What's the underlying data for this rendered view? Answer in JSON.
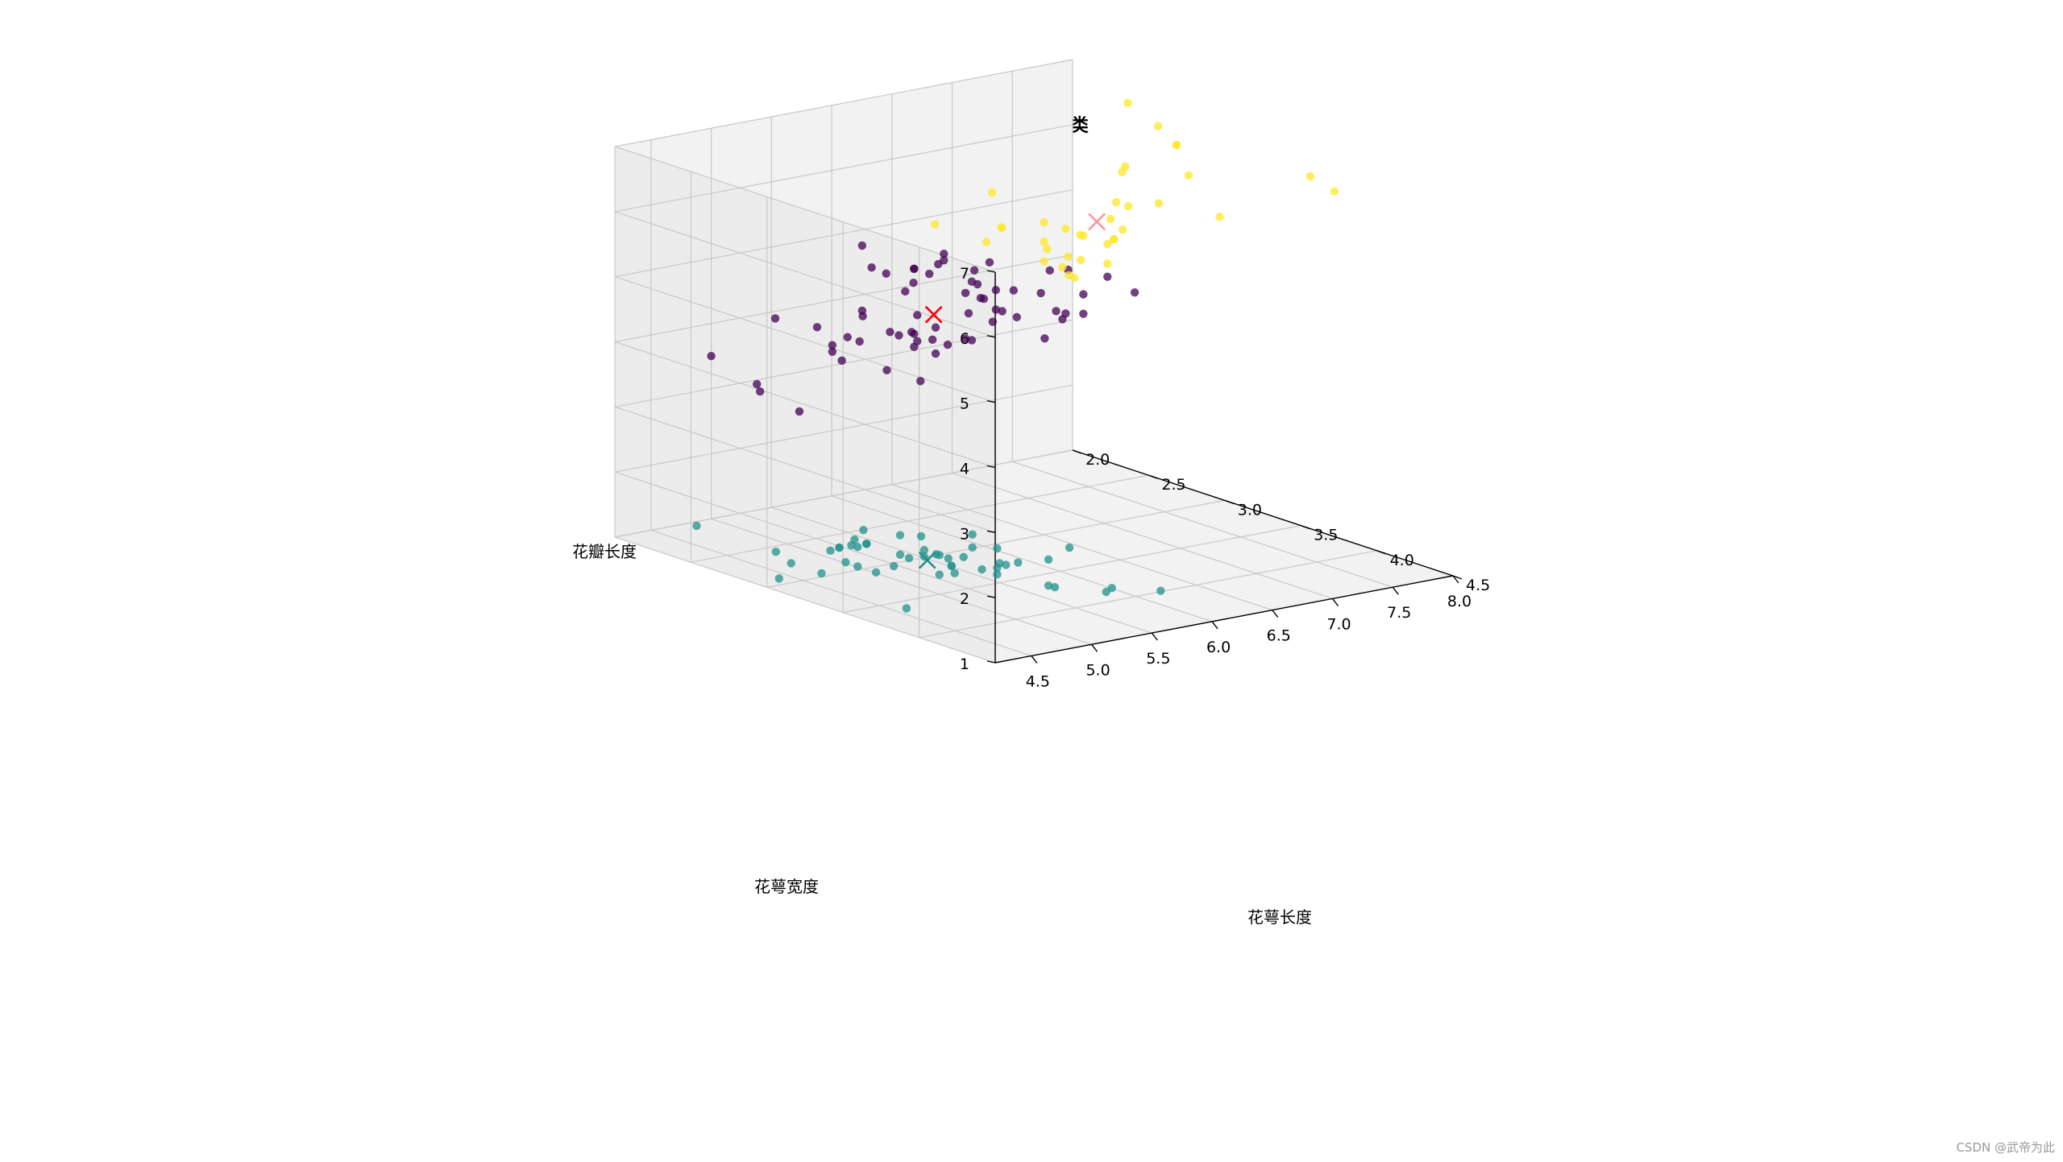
{
  "chart_data": {
    "type": "scatter3d",
    "title": "KMeans聚类",
    "xlabel": "花萼长度",
    "ylabel": "花萼宽度",
    "zlabel": "花瓣长度",
    "xlim": [
      4.2,
      8.0
    ],
    "ylim": [
      2.0,
      4.5
    ],
    "zlim": [
      1.0,
      7.0
    ],
    "x_ticks": [
      "4.5",
      "5.0",
      "5.5",
      "6.0",
      "6.5",
      "7.0",
      "7.5",
      "8.0"
    ],
    "y_ticks": [
      "2.0",
      "2.5",
      "3.0",
      "3.5",
      "4.0",
      "4.5"
    ],
    "z_ticks": [
      "1",
      "2",
      "3",
      "4",
      "5",
      "6",
      "7"
    ],
    "grid": true,
    "colors": {
      "cluster_0": "#440154",
      "cluster_1": "#21918c",
      "cluster_2": "#fde725",
      "centroid_0": "#ff0000",
      "centroid_2": "#ff9999",
      "pane": "#f2f2f2",
      "grid": "#cccccc"
    },
    "series": [
      {
        "cluster": 0,
        "points": [
          [
            7.0,
            3.2,
            4.7
          ],
          [
            6.4,
            3.2,
            4.5
          ],
          [
            6.9,
            3.1,
            4.9
          ],
          [
            5.5,
            2.3,
            4.0
          ],
          [
            6.5,
            2.8,
            4.6
          ],
          [
            5.7,
            2.8,
            4.5
          ],
          [
            6.3,
            3.3,
            4.7
          ],
          [
            4.9,
            2.4,
            3.3
          ],
          [
            6.6,
            2.9,
            4.6
          ],
          [
            5.2,
            2.7,
            3.9
          ],
          [
            5.0,
            2.0,
            3.5
          ],
          [
            5.9,
            3.0,
            4.2
          ],
          [
            6.0,
            2.2,
            4.0
          ],
          [
            6.1,
            2.9,
            4.7
          ],
          [
            5.6,
            2.9,
            3.6
          ],
          [
            6.7,
            3.1,
            4.4
          ],
          [
            5.6,
            3.0,
            4.5
          ],
          [
            5.8,
            2.7,
            4.1
          ],
          [
            6.2,
            2.2,
            4.5
          ],
          [
            5.6,
            2.5,
            3.9
          ],
          [
            5.9,
            3.2,
            4.8
          ],
          [
            6.1,
            2.8,
            4.0
          ],
          [
            6.3,
            2.5,
            4.9
          ],
          [
            6.1,
            2.8,
            4.7
          ],
          [
            6.4,
            2.9,
            4.3
          ],
          [
            6.6,
            3.0,
            4.4
          ],
          [
            6.8,
            2.8,
            4.8
          ],
          [
            6.7,
            3.0,
            5.0
          ],
          [
            6.0,
            2.9,
            4.5
          ],
          [
            5.7,
            2.6,
            3.5
          ],
          [
            5.5,
            2.4,
            3.8
          ],
          [
            5.5,
            2.4,
            3.7
          ],
          [
            5.8,
            2.7,
            3.9
          ],
          [
            6.0,
            2.7,
            5.1
          ],
          [
            5.4,
            3.0,
            4.5
          ],
          [
            6.0,
            3.4,
            4.5
          ],
          [
            6.7,
            3.1,
            4.7
          ],
          [
            6.3,
            2.3,
            4.4
          ],
          [
            5.6,
            3.0,
            4.1
          ],
          [
            5.5,
            2.5,
            4.0
          ],
          [
            5.5,
            2.6,
            4.4
          ],
          [
            6.1,
            3.0,
            4.6
          ],
          [
            5.8,
            2.6,
            4.0
          ],
          [
            5.0,
            2.3,
            3.3
          ],
          [
            5.6,
            2.7,
            4.2
          ],
          [
            5.7,
            3.0,
            4.2
          ],
          [
            5.7,
            2.9,
            4.2
          ],
          [
            6.2,
            2.9,
            4.3
          ],
          [
            5.1,
            2.5,
            3.0
          ],
          [
            5.7,
            2.8,
            4.1
          ],
          [
            5.8,
            2.7,
            5.1
          ],
          [
            4.9,
            2.5,
            4.5
          ],
          [
            5.7,
            2.5,
            5.0
          ],
          [
            5.8,
            2.8,
            5.1
          ],
          [
            6.0,
            2.2,
            5.0
          ],
          [
            5.6,
            2.8,
            4.9
          ],
          [
            6.3,
            2.7,
            4.9
          ],
          [
            6.2,
            2.8,
            4.8
          ],
          [
            6.1,
            3.0,
            4.9
          ],
          [
            6.3,
            2.8,
            5.1
          ],
          [
            6.0,
            3.0,
            4.8
          ],
          [
            5.8,
            2.7,
            5.1
          ],
          [
            6.3,
            2.5,
            5.0
          ],
          [
            5.9,
            3.0,
            5.1
          ]
        ]
      },
      {
        "cluster": 1,
        "points": [
          [
            5.1,
            3.5,
            1.4
          ],
          [
            4.9,
            3.0,
            1.4
          ],
          [
            4.7,
            3.2,
            1.3
          ],
          [
            4.6,
            3.1,
            1.5
          ],
          [
            5.0,
            3.6,
            1.4
          ],
          [
            5.4,
            3.9,
            1.7
          ],
          [
            4.6,
            3.4,
            1.4
          ],
          [
            5.0,
            3.4,
            1.5
          ],
          [
            4.4,
            2.9,
            1.4
          ],
          [
            4.9,
            3.1,
            1.5
          ],
          [
            5.4,
            3.7,
            1.5
          ],
          [
            4.8,
            3.4,
            1.6
          ],
          [
            4.8,
            3.0,
            1.4
          ],
          [
            4.3,
            3.0,
            1.1
          ],
          [
            5.8,
            4.0,
            1.2
          ],
          [
            5.7,
            4.4,
            1.5
          ],
          [
            5.4,
            3.9,
            1.3
          ],
          [
            5.1,
            3.5,
            1.4
          ],
          [
            5.7,
            3.8,
            1.7
          ],
          [
            5.1,
            3.8,
            1.5
          ],
          [
            5.4,
            3.4,
            1.7
          ],
          [
            5.1,
            3.7,
            1.5
          ],
          [
            4.6,
            3.6,
            1.0
          ],
          [
            5.1,
            3.3,
            1.7
          ],
          [
            4.8,
            3.4,
            1.9
          ],
          [
            5.0,
            3.0,
            1.6
          ],
          [
            5.0,
            3.4,
            1.6
          ],
          [
            5.2,
            3.5,
            1.5
          ],
          [
            5.2,
            3.4,
            1.4
          ],
          [
            4.7,
            3.2,
            1.6
          ],
          [
            4.8,
            3.1,
            1.6
          ],
          [
            5.4,
            3.4,
            1.5
          ],
          [
            5.2,
            4.1,
            1.5
          ],
          [
            5.5,
            4.2,
            1.4
          ],
          [
            4.9,
            3.1,
            1.5
          ],
          [
            5.0,
            3.2,
            1.2
          ],
          [
            5.5,
            3.5,
            1.3
          ],
          [
            4.4,
            3.0,
            1.3
          ],
          [
            5.1,
            3.4,
            1.5
          ],
          [
            5.0,
            3.5,
            1.3
          ],
          [
            4.5,
            2.3,
            1.3
          ],
          [
            4.4,
            3.2,
            1.3
          ],
          [
            5.0,
            3.5,
            1.6
          ],
          [
            5.1,
            3.8,
            1.9
          ],
          [
            4.8,
            3.0,
            1.4
          ],
          [
            5.1,
            3.8,
            1.6
          ],
          [
            4.6,
            3.2,
            1.4
          ],
          [
            5.3,
            3.7,
            1.5
          ],
          [
            5.0,
            3.3,
            1.4
          ]
        ]
      },
      {
        "cluster": 2,
        "points": [
          [
            6.3,
            3.3,
            6.0
          ],
          [
            7.1,
            3.0,
            5.9
          ],
          [
            6.5,
            3.0,
            5.8
          ],
          [
            7.6,
            3.0,
            6.6
          ],
          [
            7.3,
            2.9,
            6.3
          ],
          [
            6.7,
            2.5,
            5.8
          ],
          [
            7.2,
            3.6,
            6.1
          ],
          [
            6.5,
            3.2,
            5.1
          ],
          [
            6.4,
            2.7,
            5.3
          ],
          [
            6.8,
            3.0,
            5.5
          ],
          [
            6.4,
            3.2,
            5.3
          ],
          [
            6.5,
            3.0,
            5.5
          ],
          [
            7.7,
            3.8,
            6.7
          ],
          [
            7.7,
            2.6,
            6.9
          ],
          [
            6.9,
            3.2,
            5.7
          ],
          [
            7.7,
            2.8,
            6.7
          ],
          [
            6.7,
            3.3,
            5.7
          ],
          [
            7.2,
            3.2,
            6.0
          ],
          [
            6.4,
            2.8,
            5.6
          ],
          [
            7.2,
            3.0,
            5.8
          ],
          [
            7.4,
            2.8,
            6.1
          ],
          [
            7.9,
            3.8,
            6.4
          ],
          [
            6.4,
            2.8,
            5.6
          ],
          [
            6.1,
            2.6,
            5.6
          ],
          [
            7.7,
            3.0,
            6.1
          ],
          [
            6.3,
            3.4,
            5.6
          ],
          [
            6.4,
            3.1,
            5.5
          ],
          [
            6.9,
            3.1,
            5.4
          ],
          [
            6.7,
            3.1,
            5.6
          ],
          [
            6.9,
            3.1,
            5.1
          ],
          [
            6.8,
            3.2,
            5.9
          ],
          [
            6.7,
            3.3,
            5.7
          ],
          [
            6.7,
            3.0,
            5.2
          ],
          [
            6.5,
            3.0,
            5.2
          ],
          [
            6.2,
            3.4,
            5.4
          ],
          [
            7.6,
            3.0,
            6.6
          ]
        ]
      }
    ],
    "centroids": [
      {
        "cluster": 0,
        "point": [
          5.9,
          2.75,
          4.4
        ],
        "marker": "x"
      },
      {
        "cluster": 1,
        "point": [
          5.0,
          3.42,
          1.46
        ],
        "marker": "x"
      },
      {
        "cluster": 2,
        "point": [
          6.85,
          3.07,
          5.74
        ],
        "marker": "x"
      }
    ]
  },
  "watermark": "CSDN @武帝为此"
}
